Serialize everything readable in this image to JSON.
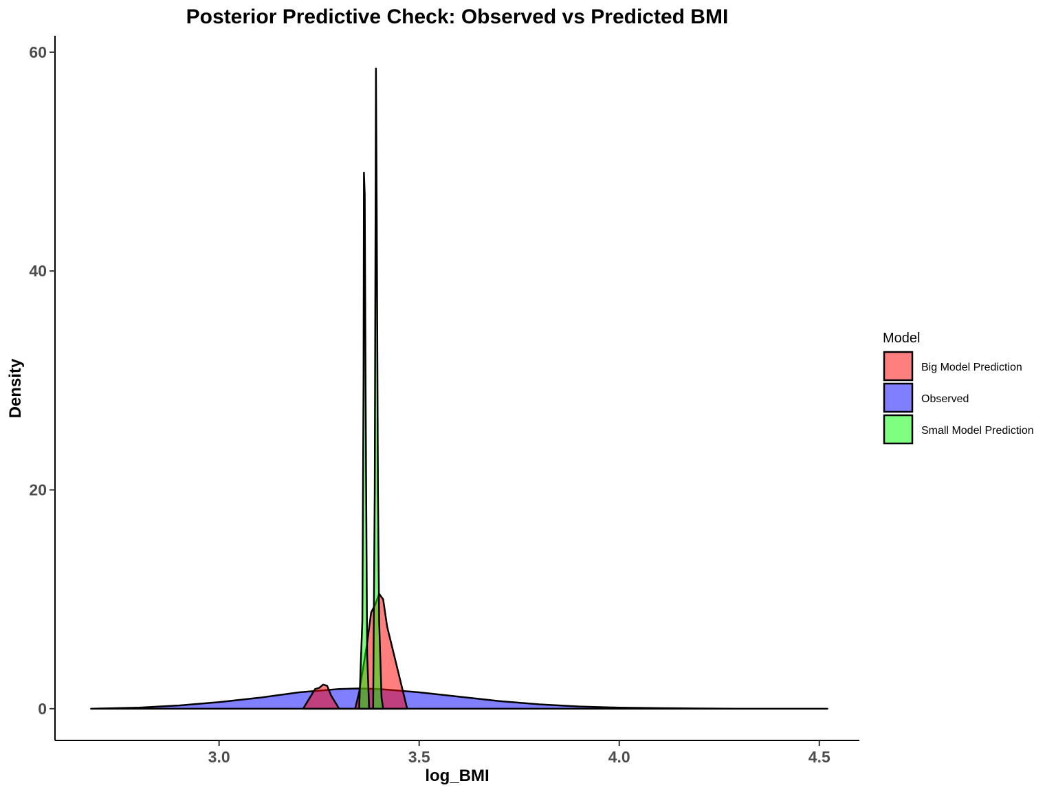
{
  "chart_data": {
    "type": "area",
    "title": "Posterior Predictive Check: Observed vs Predicted BMI",
    "xlabel": "log_BMI",
    "ylabel": "Density",
    "xlim": [
      2.59,
      4.6
    ],
    "ylim": [
      -2.9,
      61.5
    ],
    "x_ticks": [
      3.0,
      3.5,
      4.0,
      4.5
    ],
    "x_tick_labels": [
      "3.0",
      "3.5",
      "4.0",
      "4.5"
    ],
    "y_ticks": [
      0,
      20,
      40,
      60
    ],
    "y_tick_labels": [
      "0",
      "20",
      "40",
      "60"
    ],
    "grid": false,
    "legend": {
      "title": "Model",
      "position": "right"
    },
    "series": [
      {
        "name": "Observed",
        "color": "#0000ff",
        "x": [
          2.68,
          2.8,
          2.9,
          3.0,
          3.1,
          3.2,
          3.3,
          3.35,
          3.4,
          3.5,
          3.6,
          3.7,
          3.8,
          3.9,
          4.0,
          4.1,
          4.2,
          4.3,
          4.4,
          4.52
        ],
        "y": [
          0.0,
          0.1,
          0.3,
          0.6,
          1.0,
          1.5,
          1.8,
          1.85,
          1.8,
          1.5,
          1.1,
          0.7,
          0.4,
          0.2,
          0.1,
          0.05,
          0.02,
          0.0,
          0.0,
          0.0
        ]
      },
      {
        "name": "Big Model Prediction",
        "color": "#ff0000",
        "x": [
          3.21,
          3.23,
          3.24,
          3.25,
          3.26,
          3.27,
          3.28,
          3.3,
          3.31,
          3.34,
          3.35,
          3.37,
          3.38,
          3.39,
          3.4,
          3.41,
          3.42,
          3.44,
          3.46,
          3.47
        ],
        "y": [
          0.0,
          1.2,
          1.8,
          1.9,
          2.2,
          2.1,
          1.2,
          0.0,
          0.0,
          0.0,
          1.5,
          6.0,
          8.8,
          9.5,
          10.5,
          10.0,
          7.5,
          4.5,
          1.5,
          0.0
        ]
      },
      {
        "name": "Small Model Prediction",
        "color": "#00ff00",
        "x": [
          3.35,
          3.358,
          3.361,
          3.362,
          3.364,
          3.366,
          3.37,
          3.375,
          3.38,
          3.385,
          3.389,
          3.391,
          3.392,
          3.394,
          3.397,
          3.4,
          3.406,
          3.41
        ],
        "y": [
          0.0,
          8.0,
          30.0,
          49.0,
          47.0,
          30.0,
          5.0,
          0.0,
          0.0,
          0.0,
          20.0,
          45.0,
          58.5,
          45.0,
          20.0,
          8.0,
          1.0,
          0.0
        ]
      }
    ]
  }
}
